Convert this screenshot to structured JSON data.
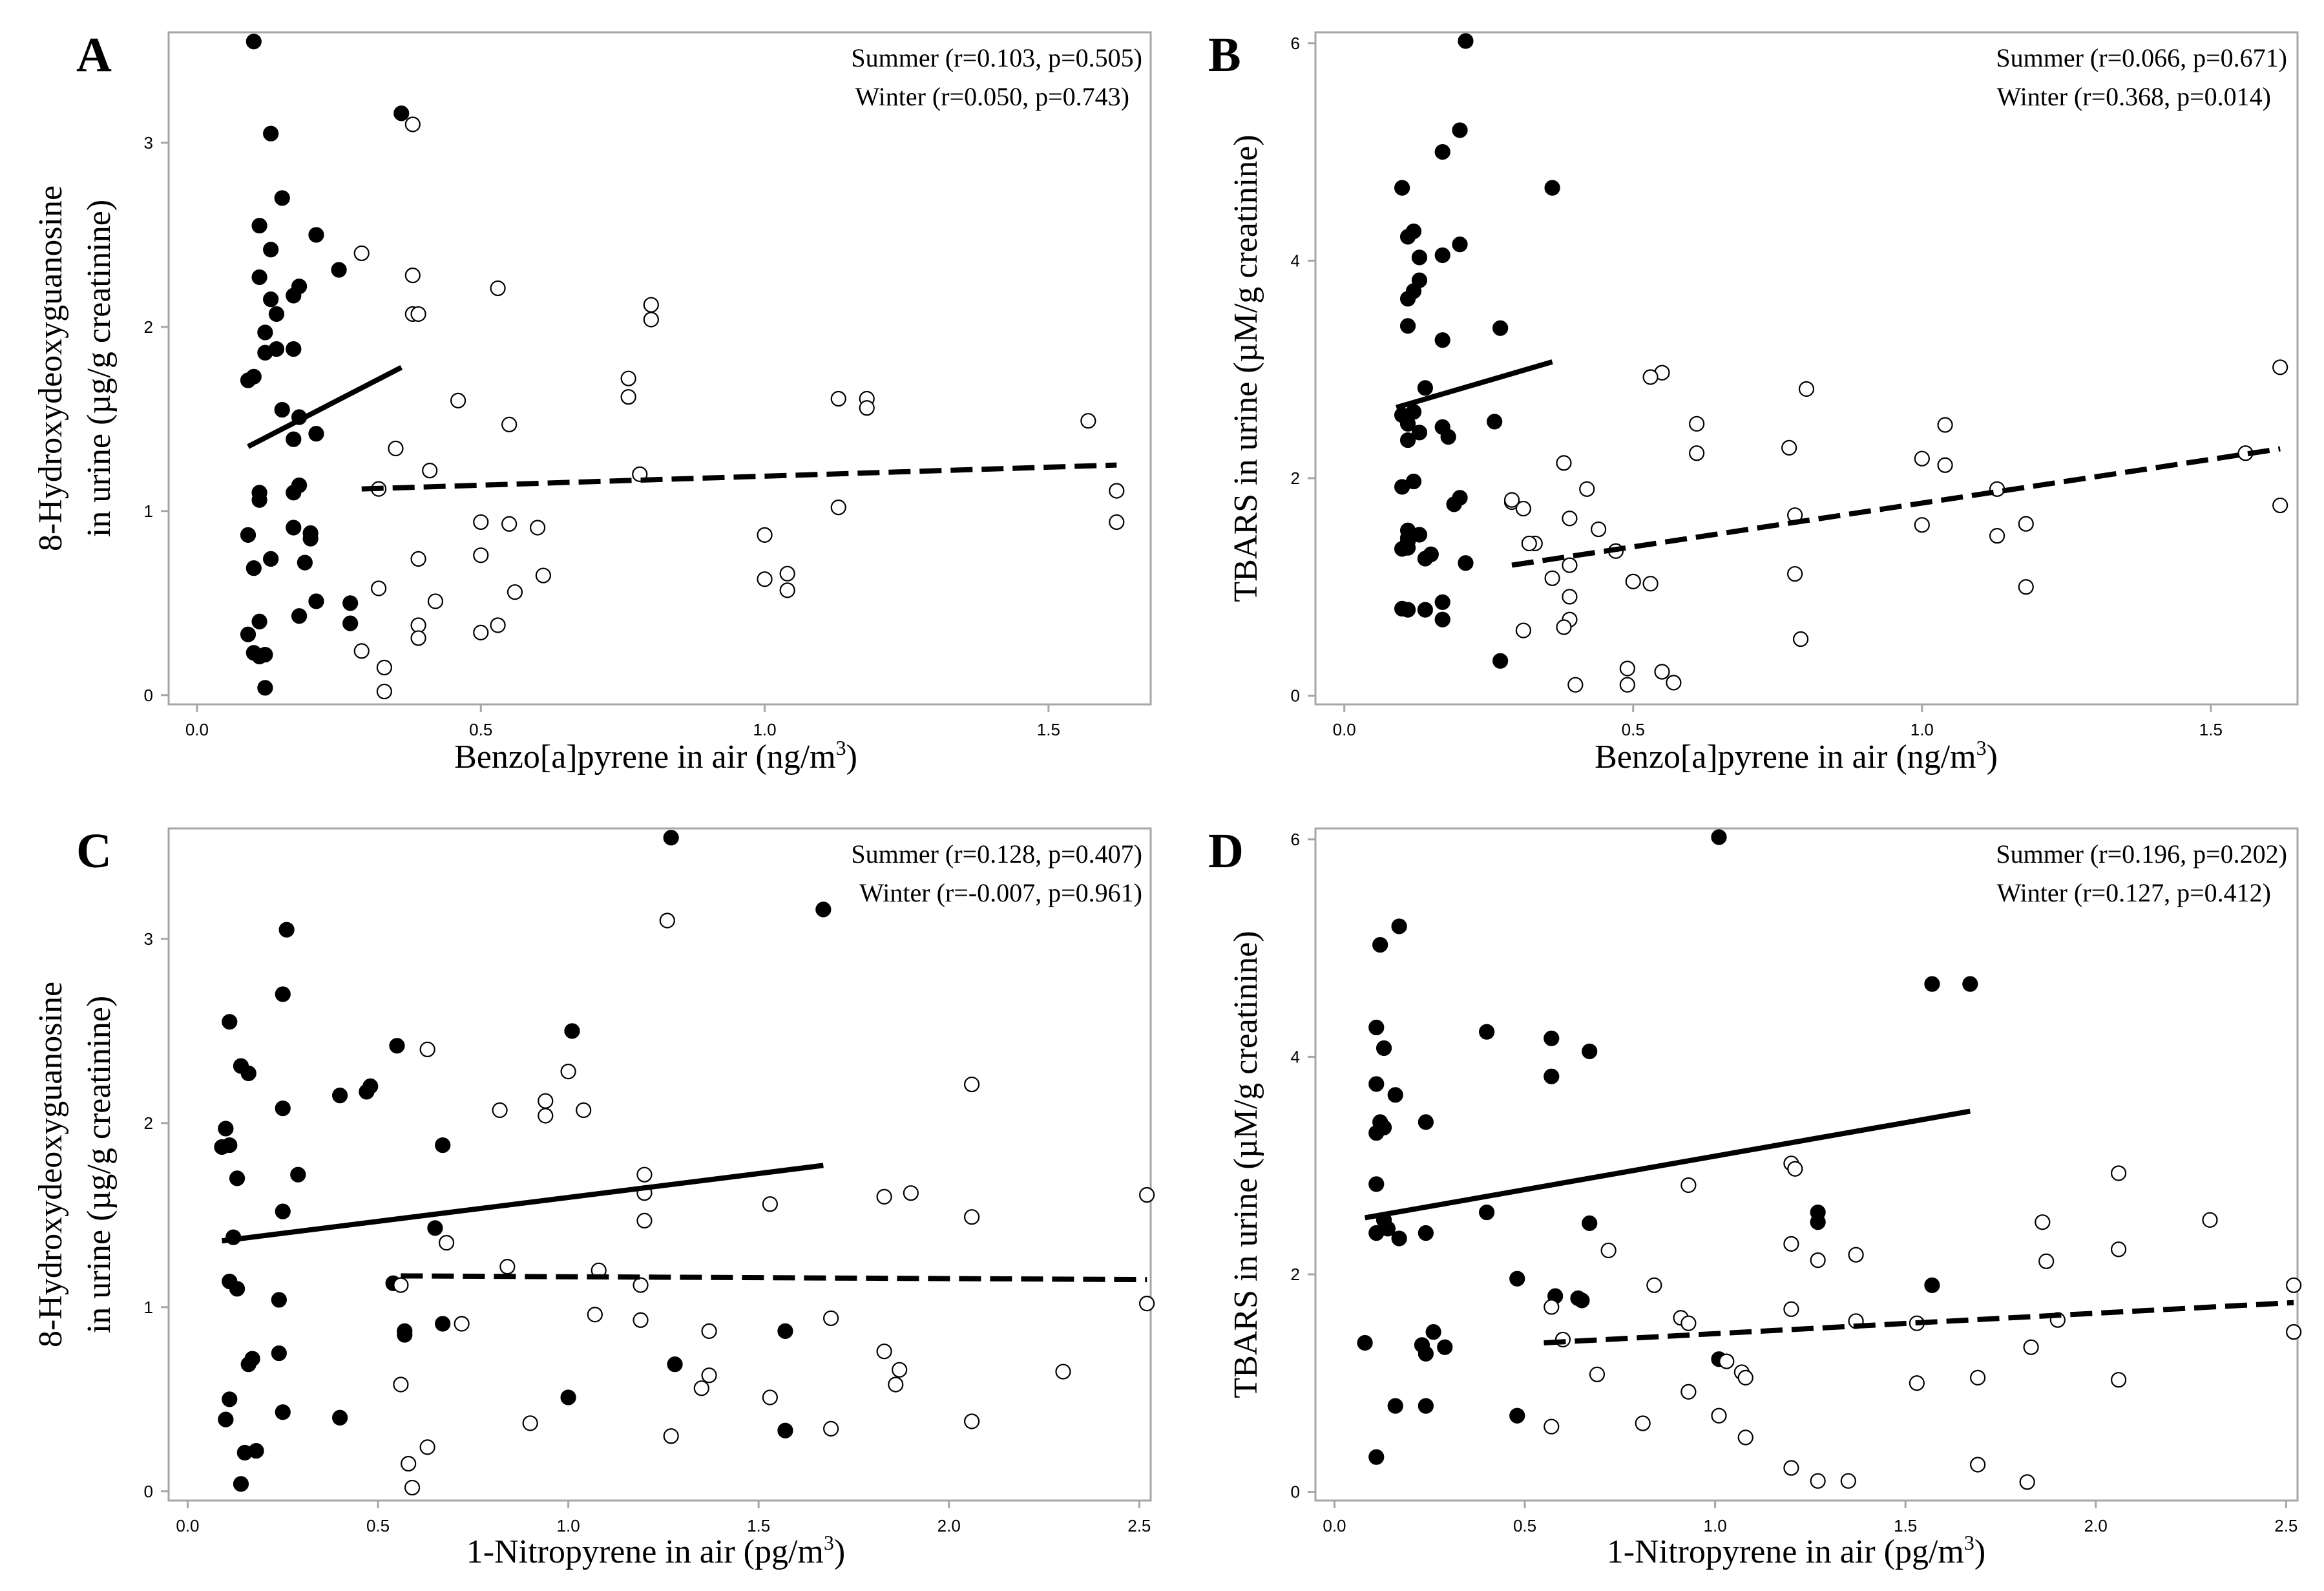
{
  "colors": {
    "summer": "#000000",
    "winter": "#ffffff",
    "frame": "#a6a6a6"
  },
  "chart_data": [
    {
      "type": "scatter",
      "panel": "A",
      "xlabel": "Benzo[a]pyrene in air (ng/m3)",
      "xlabel_main": "Benzo[a]pyrene in air (ng/m",
      "xlabel_sup": "3",
      "xlabel_tail": ")",
      "ylabel_line1": "8-Hydroxydeoxyguanosine",
      "ylabel_line2": "in urine (µg/g creatinine)",
      "xlim": [
        -0.05,
        1.68
      ],
      "ylim": [
        -0.05,
        3.6
      ],
      "x_ticks": [
        0.0,
        0.5,
        1.0,
        1.5
      ],
      "x_tick_labels": [
        "0.0",
        "0.5",
        "1.0",
        "1.5"
      ],
      "y_ticks": [
        0,
        1,
        2,
        3
      ],
      "y_tick_labels": [
        "0",
        "1",
        "2",
        "3"
      ],
      "stats": [
        "Summer (r=0.103, p=0.505)",
        "Winter (r=0.050, p=0.743)"
      ],
      "series": [
        {
          "name": "Summer",
          "marker": "filled",
          "x": [
            0.1,
            0.13,
            0.11,
            0.15,
            0.13,
            0.11,
            0.13,
            0.12,
            0.14,
            0.18,
            0.1,
            0.09,
            0.14,
            0.21,
            0.17,
            0.25,
            0.12,
            0.17,
            0.15,
            0.18,
            0.21,
            0.17,
            0.18,
            0.11,
            0.09,
            0.11,
            0.17,
            0.2,
            0.2,
            0.1,
            0.13,
            0.17,
            0.19,
            0.27,
            0.11,
            0.09,
            0.18,
            0.27,
            0.21,
            0.12,
            0.11,
            0.1,
            0.12,
            0.36
          ],
          "y": [
            3.55,
            3.05,
            2.55,
            2.7,
            2.42,
            2.27,
            2.15,
            1.97,
            1.88,
            2.22,
            1.73,
            1.71,
            2.07,
            2.5,
            2.17,
            2.31,
            1.86,
            1.88,
            1.55,
            1.51,
            1.42,
            1.39,
            1.14,
            1.06,
            0.87,
            1.1,
            1.1,
            0.88,
            0.85,
            0.69,
            0.74,
            0.91,
            0.72,
            0.5,
            0.4,
            0.33,
            0.43,
            0.39,
            0.51,
            0.22,
            0.21,
            0.23,
            0.04,
            3.16
          ]
        },
        {
          "name": "Winter",
          "marker": "open",
          "x": [
            0.38,
            0.29,
            0.38,
            0.38,
            0.39,
            0.53,
            0.8,
            0.8,
            0.76,
            0.76,
            0.46,
            0.55,
            1.13,
            1.18,
            1.18,
            1.57,
            0.35,
            0.32,
            0.41,
            0.78,
            0.5,
            0.55,
            0.6,
            1.62,
            1.13,
            1.62,
            0.5,
            0.39,
            1.0,
            0.61,
            1.0,
            1.04,
            1.04,
            0.56,
            0.42,
            0.32,
            0.39,
            0.39,
            0.53,
            0.5,
            0.29,
            0.33,
            0.33
          ],
          "y": [
            3.1,
            2.4,
            2.28,
            2.07,
            2.07,
            2.21,
            2.12,
            2.04,
            1.72,
            1.62,
            1.6,
            1.47,
            1.61,
            1.61,
            1.56,
            1.49,
            1.34,
            1.12,
            1.22,
            1.2,
            0.94,
            0.93,
            0.91,
            1.11,
            1.02,
            0.94,
            0.76,
            0.74,
            0.87,
            0.65,
            0.63,
            0.66,
            0.57,
            0.56,
            0.51,
            0.58,
            0.38,
            0.31,
            0.38,
            0.34,
            0.24,
            0.15,
            0.02
          ]
        }
      ],
      "fits": [
        {
          "name": "Summer",
          "style": "solid",
          "x": [
            0.09,
            0.36
          ],
          "y": [
            1.35,
            1.78
          ]
        },
        {
          "name": "Winter",
          "style": "dashed",
          "x": [
            0.29,
            1.62
          ],
          "y": [
            1.12,
            1.25
          ]
        }
      ]
    },
    {
      "type": "scatter",
      "panel": "B",
      "xlabel": "Benzo[a]pyrene in air (ng/m3)",
      "xlabel_main": "Benzo[a]pyrene in air (ng/m",
      "xlabel_sup": "3",
      "xlabel_tail": ")",
      "ylabel_line1": "TBARS in urine (µM/g creatinine)",
      "ylabel_line2": "",
      "xlim": [
        -0.05,
        1.65
      ],
      "ylim": [
        -0.08,
        6.1
      ],
      "x_ticks": [
        0.0,
        0.5,
        1.0,
        1.5
      ],
      "x_tick_labels": [
        "0.0",
        "0.5",
        "1.0",
        "1.5"
      ],
      "y_ticks": [
        0,
        2,
        4,
        6
      ],
      "y_tick_labels": [
        "0",
        "2",
        "4",
        "6"
      ],
      "stats": [
        "Summer (r=0.066, p=0.671)",
        "Winter (r=0.368, p=0.014)"
      ],
      "series": [
        {
          "name": "Summer",
          "marker": "filled",
          "x": [
            0.21,
            0.2,
            0.17,
            0.36,
            0.1,
            0.12,
            0.11,
            0.2,
            0.13,
            0.17,
            0.11,
            0.13,
            0.12,
            0.11,
            0.27,
            0.17,
            0.14,
            0.12,
            0.1,
            0.11,
            0.17,
            0.13,
            0.11,
            0.26,
            0.18,
            0.1,
            0.2,
            0.19,
            0.12,
            0.1,
            0.11,
            0.11,
            0.15,
            0.11,
            0.13,
            0.11,
            0.14,
            0.21,
            0.17,
            0.1,
            0.14,
            0.11,
            0.17,
            0.27
          ],
          "y": [
            6.02,
            5.2,
            5.0,
            4.67,
            4.67,
            4.27,
            4.22,
            4.15,
            4.03,
            4.05,
            3.65,
            3.82,
            3.72,
            3.4,
            3.38,
            3.27,
            2.83,
            2.61,
            2.58,
            2.5,
            2.47,
            2.42,
            2.35,
            2.52,
            2.38,
            1.92,
            1.82,
            1.76,
            1.97,
            1.35,
            1.42,
            1.36,
            1.3,
            1.52,
            1.48,
            1.45,
            1.26,
            1.22,
            0.86,
            0.8,
            0.79,
            0.79,
            0.7,
            0.32
          ]
        },
        {
          "name": "Winter",
          "marker": "open",
          "x": [
            1.62,
            0.55,
            0.53,
            0.61,
            0.8,
            1.13,
            1.04,
            1.0,
            1.62,
            1.56,
            0.77,
            0.38,
            0.61,
            1.04,
            1.18,
            1.13,
            0.42,
            0.29,
            0.31,
            0.39,
            0.44,
            1.0,
            0.78,
            0.33,
            0.47,
            0.39,
            0.36,
            0.5,
            0.53,
            0.78,
            0.31,
            0.39,
            0.39,
            1.18,
            0.38,
            0.49,
            0.55,
            0.57,
            0.49,
            0.4,
            0.79,
            0.29,
            0.32
          ],
          "y": [
            3.02,
            2.97,
            2.93,
            2.5,
            2.82,
            1.9,
            2.49,
            2.18,
            1.75,
            2.23,
            2.28,
            2.14,
            2.23,
            2.12,
            1.58,
            1.47,
            1.9,
            1.78,
            1.72,
            1.63,
            1.53,
            1.57,
            1.66,
            1.4,
            1.33,
            1.2,
            1.08,
            1.05,
            1.03,
            1.12,
            0.6,
            0.91,
            0.7,
            1.0,
            0.63,
            0.25,
            0.22,
            0.12,
            0.1,
            0.1,
            0.52,
            1.8,
            1.4
          ]
        }
      ],
      "fits": [
        {
          "name": "Summer",
          "style": "solid",
          "x": [
            0.09,
            0.36
          ],
          "y": [
            2.65,
            3.07
          ]
        },
        {
          "name": "Winter",
          "style": "dashed",
          "x": [
            0.29,
            1.62
          ],
          "y": [
            1.2,
            2.27
          ]
        }
      ]
    },
    {
      "type": "scatter",
      "panel": "C",
      "xlabel": "1-Nitropyrene  in air (pg/m3)",
      "xlabel_main": "1-Nitropyrene  in air (pg/m",
      "xlabel_sup": "3",
      "xlabel_tail": ")",
      "ylabel_line1": "8-Hydroxydeoxyguanosine",
      "ylabel_line2": "in urine (µg/g creatinine)",
      "xlim": [
        -0.05,
        2.53
      ],
      "ylim": [
        -0.05,
        3.6
      ],
      "x_ticks": [
        0.0,
        0.5,
        1.0,
        1.5,
        2.0,
        2.5
      ],
      "x_tick_labels": [
        "0.0",
        "0.5",
        "1.0",
        "1.5",
        "2.0",
        "2.5"
      ],
      "y_ticks": [
        0,
        1,
        2,
        3
      ],
      "y_tick_labels": [
        "0",
        "1",
        "2",
        "3"
      ],
      "stats": [
        "Summer (r=0.128, p=0.407)",
        "Winter (r=-0.007, p=0.961)"
      ],
      "series": [
        {
          "name": "Summer",
          "marker": "filled",
          "x": [
            1.27,
            1.67,
            0.26,
            0.11,
            0.25,
            0.14,
            0.16,
            1.01,
            0.55,
            0.48,
            0.47,
            0.4,
            0.25,
            0.1,
            0.09,
            0.11,
            0.29,
            0.25,
            0.13,
            0.67,
            0.65,
            0.12,
            0.11,
            0.13,
            0.54,
            0.24,
            0.57,
            0.57,
            0.67,
            1.57,
            0.24,
            0.17,
            0.16,
            0.11,
            1.28,
            1.0,
            0.1,
            0.4,
            0.25,
            1.57,
            0.15,
            0.18,
            0.14
          ],
          "y": [
            3.55,
            3.16,
            3.05,
            2.55,
            2.7,
            2.31,
            2.27,
            2.5,
            2.42,
            2.2,
            2.17,
            2.15,
            2.08,
            1.97,
            1.87,
            1.88,
            1.72,
            1.52,
            1.7,
            1.88,
            1.43,
            1.38,
            1.14,
            1.1,
            1.13,
            1.04,
            0.87,
            0.85,
            0.91,
            0.87,
            0.75,
            0.72,
            0.69,
            0.5,
            0.69,
            0.51,
            0.39,
            0.4,
            0.43,
            0.33,
            0.21,
            0.22,
            0.04
          ]
        },
        {
          "name": "Winter",
          "marker": "open",
          "x": [
            1.26,
            0.63,
            2.06,
            1.0,
            0.94,
            0.94,
            1.04,
            0.82,
            1.2,
            1.2,
            1.53,
            1.83,
            1.9,
            2.06,
            2.52,
            0.68,
            1.2,
            0.84,
            1.08,
            0.56,
            1.19,
            1.19,
            1.07,
            0.72,
            2.52,
            1.69,
            1.37,
            1.83,
            1.87,
            1.53,
            2.3,
            1.37,
            1.86,
            0.56,
            1.35,
            2.06,
            0.9,
            1.27,
            1.69,
            0.58,
            0.63,
            0.59
          ],
          "y": [
            3.1,
            2.4,
            2.21,
            2.28,
            2.12,
            2.04,
            2.07,
            2.07,
            1.72,
            1.62,
            1.56,
            1.6,
            1.62,
            1.49,
            1.61,
            1.35,
            1.47,
            1.22,
            1.2,
            1.12,
            1.12,
            0.93,
            0.96,
            0.91,
            1.02,
            0.94,
            0.87,
            0.76,
            0.66,
            0.51,
            0.65,
            0.63,
            0.58,
            0.58,
            0.56,
            0.38,
            0.37,
            0.3,
            0.34,
            0.15,
            0.24,
            0.02
          ]
        }
      ],
      "fits": [
        {
          "name": "Summer",
          "style": "solid",
          "x": [
            0.09,
            1.67
          ],
          "y": [
            1.36,
            1.77
          ]
        },
        {
          "name": "Winter",
          "style": "dashed",
          "x": [
            0.56,
            2.52
          ],
          "y": [
            1.17,
            1.15
          ]
        }
      ]
    },
    {
      "type": "scatter",
      "panel": "D",
      "xlabel": "1-Nitropyrene  in air (pg/m3)",
      "xlabel_main": "1-Nitropyrene  in air (pg/m",
      "xlabel_sup": "3",
      "xlabel_tail": ")",
      "ylabel_line1": "TBARS in urine (µM/g creatinine)",
      "ylabel_line2": "",
      "xlim": [
        -0.05,
        2.53
      ],
      "ylim": [
        -0.08,
        6.1
      ],
      "x_ticks": [
        0.0,
        0.5,
        1.0,
        1.5,
        2.0,
        2.5
      ],
      "x_tick_labels": [
        "0.0",
        "0.5",
        "1.0",
        "1.5",
        "2.0",
        "2.5"
      ],
      "y_ticks": [
        0,
        2,
        4,
        6
      ],
      "y_tick_labels": [
        "0",
        "2",
        "4",
        "6"
      ],
      "stats": [
        "Summer (r=0.196, p=0.202)",
        "Winter (r=0.127, p=0.412)"
      ],
      "series": [
        {
          "name": "Summer",
          "marker": "filled",
          "x": [
            1.01,
            0.17,
            0.12,
            0.11,
            1.57,
            1.67,
            0.4,
            0.57,
            0.67,
            0.13,
            0.57,
            0.11,
            0.16,
            0.12,
            0.13,
            0.11,
            0.24,
            0.11,
            0.4,
            1.27,
            1.27,
            0.67,
            0.13,
            0.17,
            0.24,
            0.11,
            0.14,
            0.48,
            0.58,
            0.64,
            1.57,
            0.65,
            0.26,
            0.23,
            0.29,
            0.08,
            1.01,
            0.24,
            0.24,
            0.16,
            0.48,
            0.11
          ],
          "y": [
            6.02,
            5.2,
            5.03,
            4.27,
            4.67,
            4.67,
            4.23,
            4.17,
            4.05,
            4.08,
            3.82,
            3.75,
            3.65,
            3.4,
            3.35,
            3.3,
            3.4,
            2.83,
            2.57,
            2.57,
            2.48,
            2.47,
            2.5,
            2.33,
            2.38,
            2.38,
            2.42,
            1.96,
            1.8,
            1.78,
            1.9,
            1.76,
            1.47,
            1.35,
            1.33,
            1.37,
            1.22,
            1.27,
            0.79,
            0.79,
            0.7,
            0.32
          ]
        },
        {
          "name": "Winter",
          "marker": "open",
          "x": [
            1.2,
            1.21,
            2.06,
            0.93,
            2.3,
            1.86,
            1.87,
            1.27,
            2.06,
            1.37,
            1.2,
            1.2,
            0.84,
            0.72,
            0.91,
            1.03,
            0.93,
            0.6,
            0.57,
            1.9,
            2.52,
            1.53,
            2.52,
            1.37,
            1.83,
            0.69,
            1.07,
            1.08,
            2.06,
            1.69,
            1.53,
            0.81,
            0.93,
            1.01,
            1.08,
            0.57,
            1.69,
            1.2,
            1.27,
            1.35,
            1.82
          ],
          "y": [
            3.02,
            2.97,
            2.93,
            2.82,
            2.5,
            2.48,
            2.12,
            2.13,
            2.23,
            2.18,
            2.28,
            1.68,
            1.9,
            2.22,
            1.6,
            1.2,
            1.55,
            1.4,
            1.7,
            1.58,
            1.9,
            1.55,
            1.47,
            1.57,
            1.33,
            1.08,
            1.1,
            1.05,
            1.03,
            1.05,
            1.0,
            0.63,
            0.92,
            0.7,
            0.5,
            0.6,
            0.25,
            0.22,
            0.1,
            0.1,
            0.09
          ]
        }
      ],
      "fits": [
        {
          "name": "Summer",
          "style": "solid",
          "x": [
            0.08,
            1.67
          ],
          "y": [
            2.52,
            3.5
          ]
        },
        {
          "name": "Winter",
          "style": "dashed",
          "x": [
            0.55,
            2.52
          ],
          "y": [
            1.37,
            1.74
          ]
        }
      ]
    }
  ]
}
